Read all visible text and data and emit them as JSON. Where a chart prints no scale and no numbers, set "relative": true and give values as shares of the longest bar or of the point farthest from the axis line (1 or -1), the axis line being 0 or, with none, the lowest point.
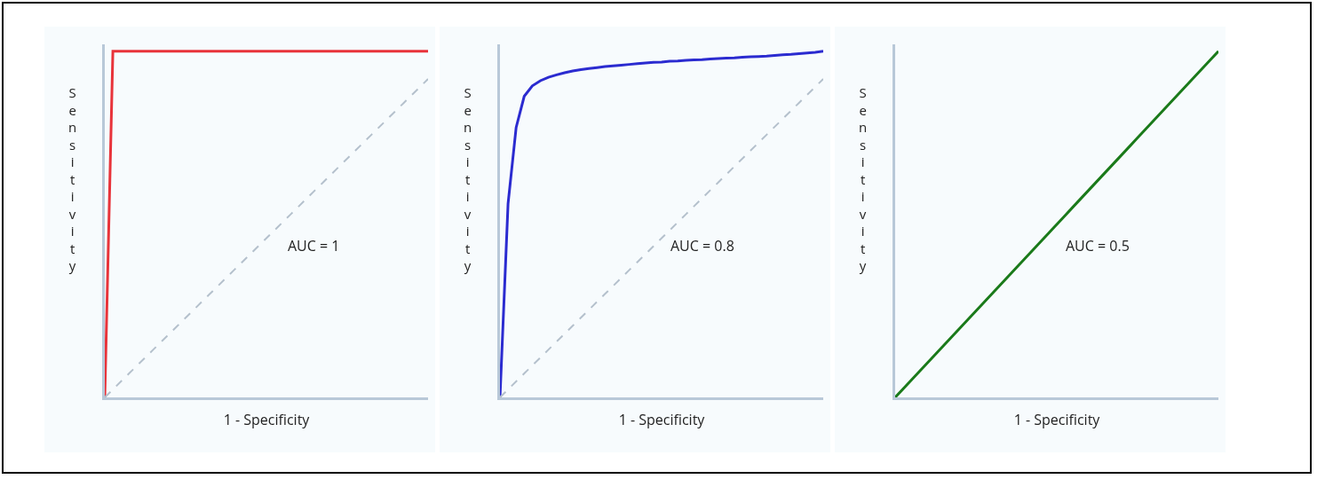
{
  "chart_data": [
    {
      "type": "line",
      "relative": true,
      "xlabel": "1 - Specificity",
      "ylabel": "Sensitivity",
      "annotations": [
        "AUC = 1"
      ],
      "grid": false,
      "marker": "none",
      "categories": [
        null,
        null,
        null,
        null,
        null,
        null,
        null,
        null,
        null,
        null,
        null,
        null,
        null,
        null,
        null,
        null,
        null,
        null,
        null,
        null,
        null,
        null,
        null,
        null,
        null,
        null,
        null,
        null,
        null,
        null,
        null,
        null,
        null,
        null,
        null,
        null,
        null,
        null,
        null,
        null,
        null
      ],
      "series": [
        {
          "color": "#e8333a",
          "line_style": "solid",
          "values": [
            0,
            1,
            1,
            1,
            1,
            1,
            1,
            1,
            1,
            1,
            1,
            1,
            1,
            1,
            1,
            1,
            1,
            1,
            1,
            1,
            1,
            1,
            1,
            1,
            1,
            1,
            1,
            1,
            1,
            1,
            1,
            1,
            1,
            1,
            1,
            1,
            1,
            1,
            1,
            1,
            1
          ]
        },
        {
          "color": "#b4c0cc",
          "line_style": "dashed",
          "values": [
            0,
            0.023,
            0.046,
            0.069,
            0.092,
            0.115,
            0.138,
            0.161,
            0.184,
            0.207,
            0.23,
            0.253,
            0.276,
            0.299,
            0.322,
            0.345,
            0.368,
            0.391,
            0.414,
            0.437,
            0.46,
            0.483,
            0.506,
            0.529,
            0.552,
            0.575,
            0.598,
            0.621,
            0.644,
            0.667,
            0.69,
            0.713,
            0.736,
            0.759,
            0.782,
            0.805,
            0.828,
            0.851,
            0.874,
            0.897,
            0.92
          ]
        }
      ]
    },
    {
      "type": "line",
      "relative": true,
      "xlabel": "1 - Specificity",
      "ylabel": "Sensitivity",
      "annotations": [
        "AUC = 0.8"
      ],
      "grid": false,
      "marker": "none",
      "categories": [
        null,
        null,
        null,
        null,
        null,
        null,
        null,
        null,
        null,
        null,
        null,
        null,
        null,
        null,
        null,
        null,
        null,
        null,
        null,
        null,
        null,
        null,
        null,
        null,
        null,
        null,
        null,
        null,
        null,
        null,
        null,
        null,
        null,
        null,
        null,
        null,
        null,
        null,
        null,
        null,
        null
      ],
      "series": [
        {
          "color": "#2b2bd0",
          "line_style": "solid",
          "values": [
            0,
            0.56,
            0.78,
            0.87,
            0.9,
            0.915,
            0.925,
            0.932,
            0.938,
            0.943,
            0.947,
            0.95,
            0.953,
            0.956,
            0.958,
            0.96,
            0.962,
            0.964,
            0.966,
            0.968,
            0.969,
            0.971,
            0.972,
            0.974,
            0.975,
            0.976,
            0.978,
            0.979,
            0.98,
            0.981,
            0.983,
            0.984,
            0.985,
            0.986,
            0.988,
            0.99,
            0.991,
            0.993,
            0.995,
            0.997,
            1
          ]
        },
        {
          "color": "#b4c0cc",
          "line_style": "dashed",
          "values": [
            0,
            0.023,
            0.046,
            0.069,
            0.092,
            0.115,
            0.138,
            0.161,
            0.184,
            0.207,
            0.23,
            0.253,
            0.276,
            0.299,
            0.322,
            0.345,
            0.368,
            0.391,
            0.414,
            0.437,
            0.46,
            0.483,
            0.506,
            0.529,
            0.552,
            0.575,
            0.598,
            0.621,
            0.644,
            0.667,
            0.69,
            0.713,
            0.736,
            0.759,
            0.782,
            0.805,
            0.828,
            0.851,
            0.874,
            0.897,
            0.92
          ]
        }
      ]
    },
    {
      "type": "line",
      "relative": true,
      "xlabel": "1 - Specificity",
      "ylabel": "Sensitivity",
      "annotations": [
        "AUC = 0.5"
      ],
      "grid": false,
      "marker": "none",
      "categories": [
        null,
        null,
        null,
        null,
        null,
        null,
        null,
        null,
        null,
        null,
        null,
        null,
        null,
        null,
        null,
        null,
        null,
        null,
        null,
        null,
        null,
        null,
        null,
        null,
        null,
        null,
        null,
        null,
        null,
        null,
        null,
        null,
        null,
        null,
        null,
        null,
        null,
        null,
        null,
        null,
        null
      ],
      "series": [
        {
          "color": "#1a7a1a",
          "line_style": "solid",
          "values": [
            0,
            0.025,
            0.05,
            0.075,
            0.1,
            0.125,
            0.15,
            0.175,
            0.2,
            0.225,
            0.25,
            0.275,
            0.3,
            0.325,
            0.35,
            0.375,
            0.4,
            0.425,
            0.45,
            0.475,
            0.5,
            0.525,
            0.55,
            0.575,
            0.6,
            0.625,
            0.65,
            0.675,
            0.7,
            0.725,
            0.75,
            0.775,
            0.8,
            0.825,
            0.85,
            0.875,
            0.9,
            0.925,
            0.95,
            0.975,
            1
          ]
        }
      ]
    }
  ]
}
